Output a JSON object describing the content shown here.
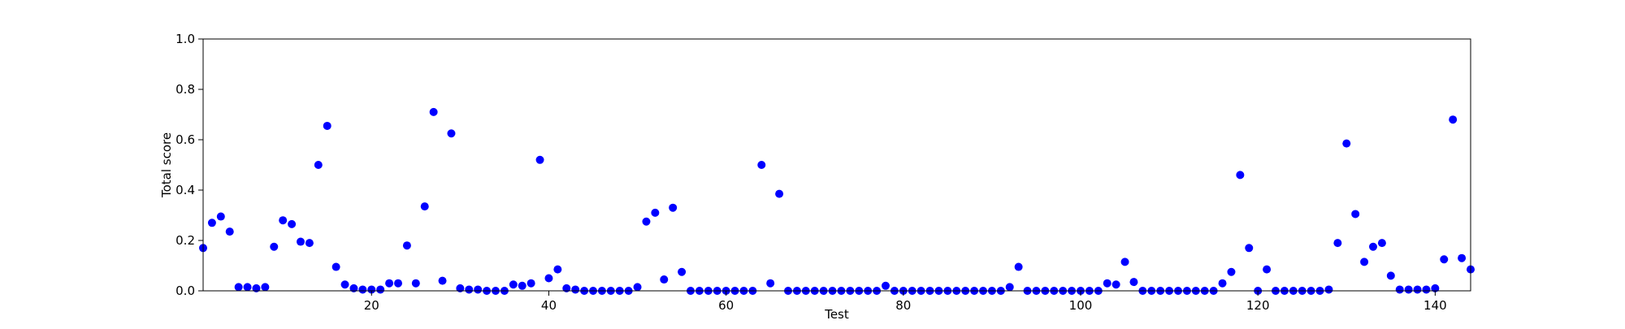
{
  "chart_data": {
    "type": "scatter",
    "title": "",
    "xlabel": "Test",
    "ylabel": "Total score",
    "xlim": [
      1,
      144
    ],
    "ylim": [
      0,
      1.0
    ],
    "x_ticks": [
      20,
      40,
      60,
      80,
      100,
      120,
      140
    ],
    "y_ticks": [
      0.0,
      0.2,
      0.4,
      0.6,
      0.8,
      1.0
    ],
    "y_tick_labels": [
      "0.0",
      "0.2",
      "0.4",
      "0.6",
      "0.8",
      "1.0"
    ],
    "grid": false,
    "legend": "none",
    "marker_color": "#0000ff",
    "series": [
      {
        "x": [
          1,
          2,
          3,
          4,
          5,
          6,
          7,
          8,
          9,
          10,
          11,
          12,
          13,
          14,
          15,
          16,
          17,
          18,
          19,
          20,
          21,
          22,
          23,
          24,
          25,
          26,
          27,
          28,
          29,
          30,
          31,
          32,
          33,
          34,
          35,
          36,
          37,
          38,
          39,
          40,
          41,
          42,
          43,
          44,
          45,
          46,
          47,
          48,
          49,
          50,
          51,
          52,
          53,
          54,
          55,
          56,
          57,
          58,
          59,
          60,
          61,
          62,
          63,
          64,
          65,
          66,
          67,
          68,
          69,
          70,
          71,
          72,
          73,
          74,
          75,
          76,
          77,
          78,
          79,
          80,
          81,
          82,
          83,
          84,
          85,
          86,
          87,
          88,
          89,
          90,
          91,
          92,
          93,
          94,
          95,
          96,
          97,
          98,
          99,
          100,
          101,
          102,
          103,
          104,
          105,
          106,
          107,
          108,
          109,
          110,
          111,
          112,
          113,
          114,
          115,
          116,
          117,
          118,
          119,
          120,
          121,
          122,
          123,
          124,
          125,
          126,
          127,
          128,
          129,
          130,
          131,
          132,
          133,
          134,
          135,
          136,
          137,
          138,
          139,
          140,
          141,
          142,
          143,
          144
        ],
        "y": [
          0.17,
          0.27,
          0.295,
          0.235,
          0.015,
          0.015,
          0.01,
          0.015,
          0.175,
          0.28,
          0.265,
          0.195,
          0.19,
          0.5,
          0.655,
          0.095,
          0.025,
          0.01,
          0.005,
          0.005,
          0.005,
          0.03,
          0.03,
          0.18,
          0.03,
          0.335,
          0.71,
          0.04,
          0.625,
          0.01,
          0.005,
          0.005,
          0.0,
          0.0,
          0.0,
          0.025,
          0.02,
          0.03,
          0.52,
          0.05,
          0.085,
          0.01,
          0.005,
          0.0,
          0.0,
          0.0,
          0.0,
          0.0,
          0.0,
          0.015,
          0.275,
          0.31,
          0.045,
          0.33,
          0.075,
          0.0,
          0.0,
          0.0,
          0.0,
          0.0,
          0.0,
          0.0,
          0.0,
          0.5,
          0.03,
          0.385,
          0.0,
          0.0,
          0.0,
          0.0,
          0.0,
          0.0,
          0.0,
          0.0,
          0.0,
          0.0,
          0.0,
          0.02,
          0.0,
          0.0,
          0.0,
          0.0,
          0.0,
          0.0,
          0.0,
          0.0,
          0.0,
          0.0,
          0.0,
          0.0,
          0.0,
          0.015,
          0.095,
          0.0,
          0.0,
          0.0,
          0.0,
          0.0,
          0.0,
          0.0,
          0.0,
          0.0,
          0.03,
          0.025,
          0.115,
          0.035,
          0.0,
          0.0,
          0.0,
          0.0,
          0.0,
          0.0,
          0.0,
          0.0,
          0.0,
          0.03,
          0.075,
          0.46,
          0.17,
          0.0,
          0.085,
          0.0,
          0.0,
          0.0,
          0.0,
          0.0,
          0.0,
          0.005,
          0.19,
          0.585,
          0.305,
          0.115,
          0.175,
          0.19,
          0.06,
          0.005,
          0.005,
          0.005,
          0.005,
          0.01,
          0.125,
          0.68,
          0.13,
          0.085
        ]
      }
    ]
  }
}
